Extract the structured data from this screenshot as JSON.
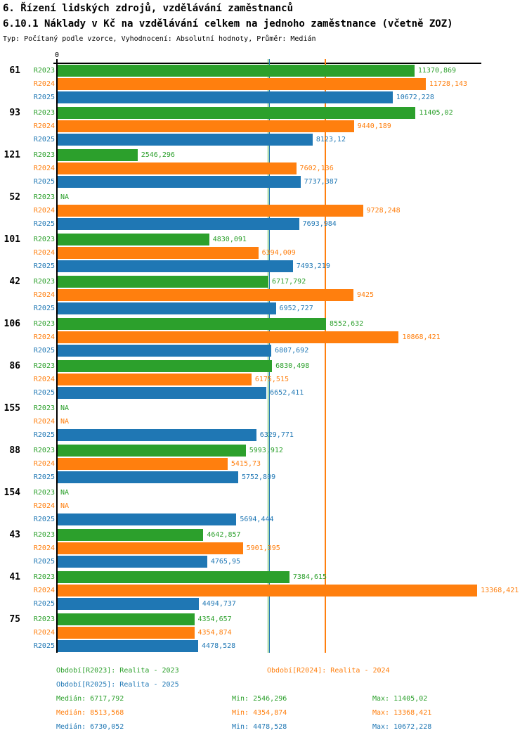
{
  "header": {
    "title": "6. Řízení lidských zdrojů, vzdělávání zaměstnanců",
    "subtitle": "6.10.1 Náklady v Kč na vzdělávání celkem na jednoho zaměstnance (včetně ZOZ)",
    "meta": "Typ: Počítaný podle vzorce, Vyhodnocení: Absolutní hodnoty, Průměr: Medián"
  },
  "chart_data": {
    "type": "bar",
    "orientation": "horizontal-grouped",
    "title": "6.10.1 Náklady v Kč na vzdělávání celkem na jednoho zaměstnance (včetně ZOZ)",
    "axis": {
      "zero_label": "0",
      "max": 13500,
      "grid": false
    },
    "series": [
      {
        "name": "R2023",
        "color": "#2CA02C",
        "median": 6717.792,
        "median_text": "6717,792",
        "min_text": "2546,296",
        "max_text": "11405,02"
      },
      {
        "name": "R2024",
        "color": "#FF7F0E",
        "median": 8513.568,
        "median_text": "8513,568",
        "min_text": "4354,874",
        "max_text": "13368,421"
      },
      {
        "name": "R2025",
        "color": "#1F77B4",
        "median": 6730.052,
        "median_text": "6730,052",
        "min_text": "4478,528",
        "max_text": "10672,228"
      }
    ],
    "groups": [
      {
        "label": "61",
        "bars": [
          {
            "value": 11370.869,
            "text": "11370,869"
          },
          {
            "value": 11728.143,
            "text": "11728,143"
          },
          {
            "value": 10672.228,
            "text": "10672,228"
          }
        ]
      },
      {
        "label": "93",
        "bars": [
          {
            "value": 11405.02,
            "text": "11405,02"
          },
          {
            "value": 9440.189,
            "text": "9440,189"
          },
          {
            "value": 8123.12,
            "text": "8123,12"
          }
        ]
      },
      {
        "label": "121",
        "bars": [
          {
            "value": 2546.296,
            "text": "2546,296"
          },
          {
            "value": 7602.136,
            "text": "7602,136"
          },
          {
            "value": 7737.387,
            "text": "7737,387"
          }
        ]
      },
      {
        "label": "52",
        "bars": [
          {
            "value": null,
            "text": "NA"
          },
          {
            "value": 9728.248,
            "text": "9728,248"
          },
          {
            "value": 7693.984,
            "text": "7693,984"
          }
        ]
      },
      {
        "label": "101",
        "bars": [
          {
            "value": 4830.091,
            "text": "4830,091"
          },
          {
            "value": 6394.009,
            "text": "6394,009"
          },
          {
            "value": 7493.219,
            "text": "7493,219"
          }
        ]
      },
      {
        "label": "42",
        "bars": [
          {
            "value": 6717.792,
            "text": "6717,792"
          },
          {
            "value": 9425,
            "text": "9425"
          },
          {
            "value": 6952.727,
            "text": "6952,727"
          }
        ]
      },
      {
        "label": "106",
        "bars": [
          {
            "value": 8552.632,
            "text": "8552,632"
          },
          {
            "value": 10868.421,
            "text": "10868,421"
          },
          {
            "value": 6807.692,
            "text": "6807,692"
          }
        ]
      },
      {
        "label": "86",
        "bars": [
          {
            "value": 6830.498,
            "text": "6830,498"
          },
          {
            "value": 6175.515,
            "text": "6175,515"
          },
          {
            "value": 6652.411,
            "text": "6652,411"
          }
        ]
      },
      {
        "label": "155",
        "bars": [
          {
            "value": null,
            "text": "NA"
          },
          {
            "value": null,
            "text": "NA"
          },
          {
            "value": 6329.771,
            "text": "6329,771"
          }
        ]
      },
      {
        "label": "88",
        "bars": [
          {
            "value": 5993.912,
            "text": "5993,912"
          },
          {
            "value": 5415.73,
            "text": "5415,73"
          },
          {
            "value": 5752.809,
            "text": "5752,809"
          }
        ]
      },
      {
        "label": "154",
        "bars": [
          {
            "value": null,
            "text": "NA"
          },
          {
            "value": null,
            "text": "NA"
          },
          {
            "value": 5694.444,
            "text": "5694,444"
          }
        ]
      },
      {
        "label": "43",
        "bars": [
          {
            "value": 4642.857,
            "text": "4642,857"
          },
          {
            "value": 5901.395,
            "text": "5901,395"
          },
          {
            "value": 4765.95,
            "text": "4765,95"
          }
        ]
      },
      {
        "label": "41",
        "bars": [
          {
            "value": 7384.615,
            "text": "7384,615"
          },
          {
            "value": 13368.421,
            "text": "13368,421"
          },
          {
            "value": 4494.737,
            "text": "4494,737"
          }
        ]
      },
      {
        "label": "75",
        "bars": [
          {
            "value": 4354.657,
            "text": "4354,657"
          },
          {
            "value": 4354.874,
            "text": "4354,874"
          },
          {
            "value": 4478.528,
            "text": "4478,528"
          }
        ]
      }
    ]
  },
  "legend": {
    "r2023": "Období[R2023]: Realita - 2023",
    "r2024": "Období[R2024]: Realita - 2024",
    "r2025": "Období[R2025]: Realita - 2025"
  },
  "stats": {
    "rows": [
      {
        "series": "R2023",
        "median": "Medián: 6717,792",
        "min": "Min: 2546,296",
        "max": "Max: 11405,02"
      },
      {
        "series": "R2024",
        "median": "Medián: 8513,568",
        "min": "Min: 4354,874",
        "max": "Max: 13368,421"
      },
      {
        "series": "R2025",
        "median": "Medián: 6730,052",
        "min": "Min: 4478,528",
        "max": "Max: 10672,228"
      }
    ]
  }
}
